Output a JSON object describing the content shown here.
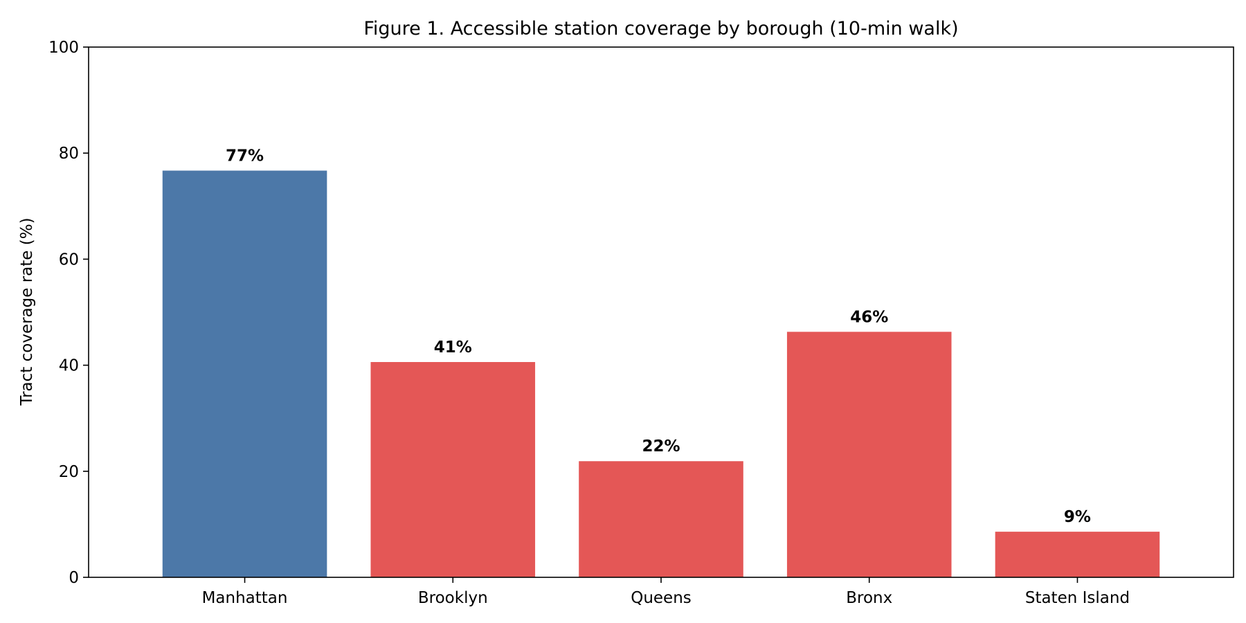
{
  "chart_data": {
    "type": "bar",
    "title": "Figure 1. Accessible station coverage by borough (10-min walk)",
    "xlabel": "",
    "ylabel": "Tract coverage rate (%)",
    "ylim": [
      0,
      100
    ],
    "yticks": [
      0,
      20,
      40,
      60,
      80,
      100
    ],
    "grid": false,
    "categories": [
      "Manhattan",
      "Brooklyn",
      "Queens",
      "Bronx",
      "Staten Island"
    ],
    "values": [
      76.7,
      40.6,
      21.9,
      46.3,
      8.6
    ],
    "value_labels": [
      "77%",
      "41%",
      "22%",
      "46%",
      "9%"
    ],
    "bar_colors": [
      "#4c78a8",
      "#e45756",
      "#e45756",
      "#e45756",
      "#e45756"
    ]
  }
}
